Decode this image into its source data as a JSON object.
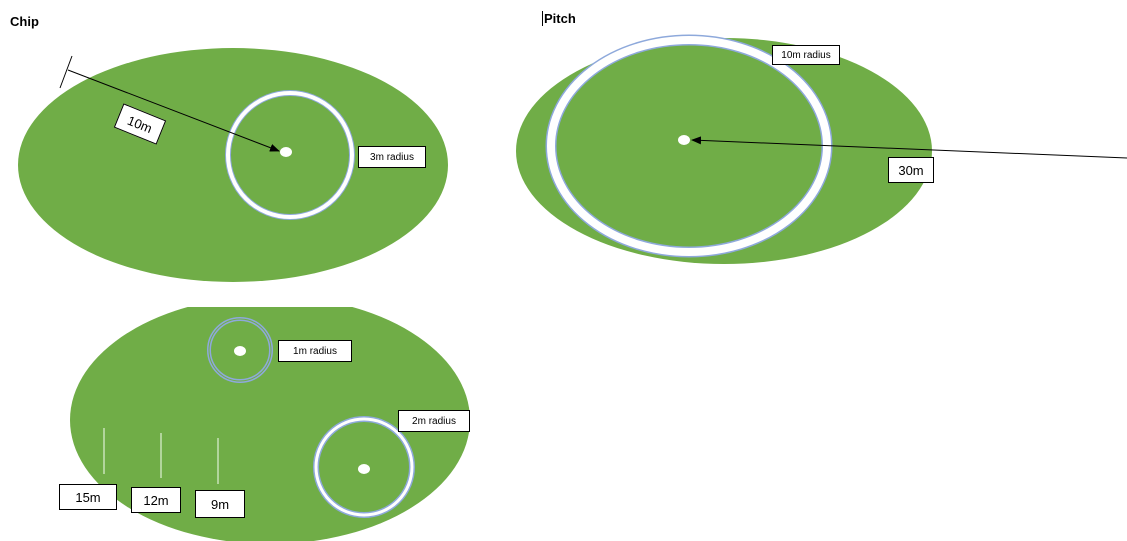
{
  "colors": {
    "grass": "#70AD47",
    "ring_outer": "#8EA9DB",
    "ring_inner": "#ffffff",
    "line": "#000000"
  },
  "chip": {
    "title": "Chip",
    "distance_label": "10m",
    "radius_label": "3m radius"
  },
  "pitch": {
    "title": "Pitch",
    "radius_label": "10m radius",
    "distance_label": "30m"
  },
  "practice": {
    "small_radius_label": "1m radius",
    "medium_radius_label": "2m radius",
    "distances": [
      "15m",
      "12m",
      "9m"
    ]
  }
}
